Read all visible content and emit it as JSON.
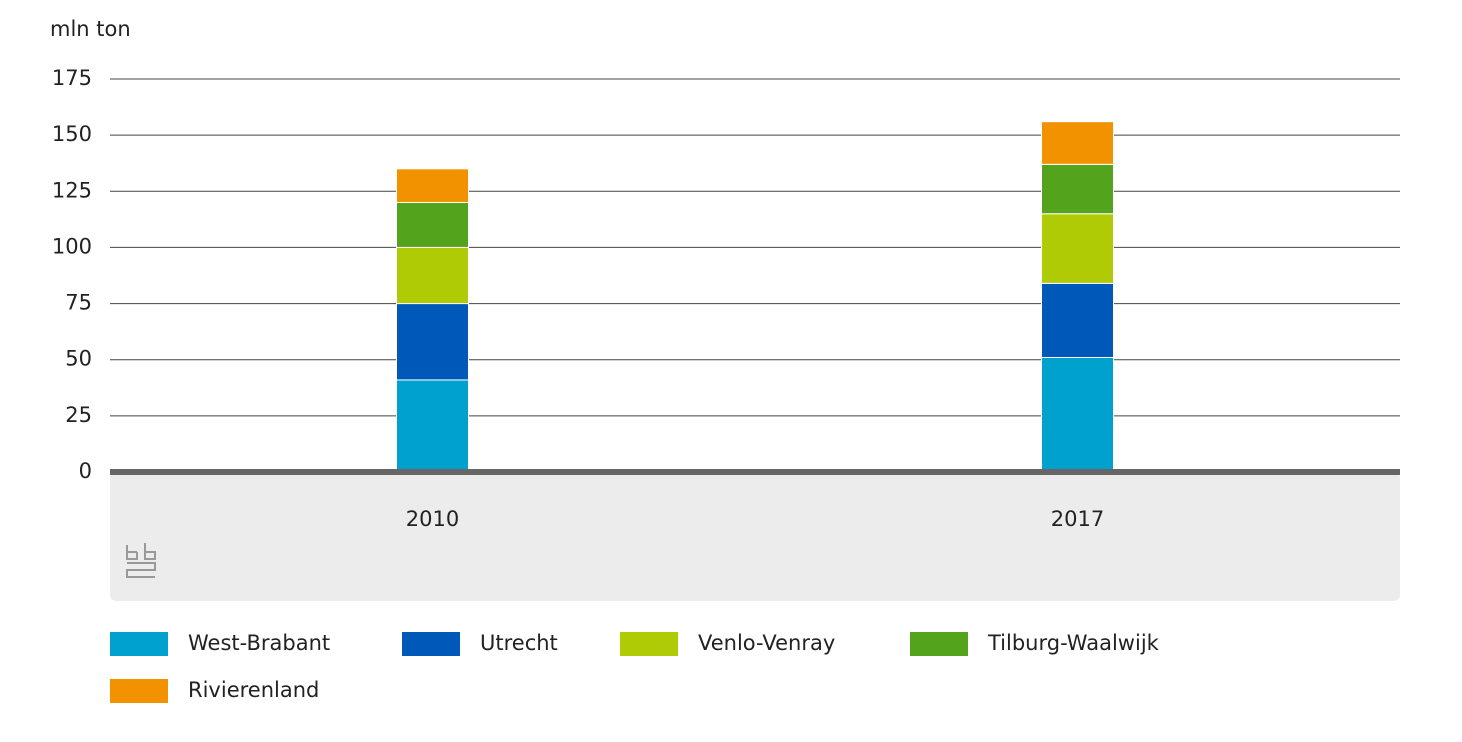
{
  "chart_data": {
    "type": "stacked_bar",
    "y_label": "mln ton",
    "categories": [
      "2010",
      "2017"
    ],
    "series": [
      {
        "name": "West-Brabant",
        "color": "#00a1cd",
        "values": [
          41,
          51
        ]
      },
      {
        "name": "Utrecht",
        "color": "#0058b8",
        "values": [
          34,
          33
        ]
      },
      {
        "name": "Venlo-Venray",
        "color": "#afcb05",
        "values": [
          25,
          31
        ]
      },
      {
        "name": "Tilburg-Waalwijk",
        "color": "#53a31d",
        "values": [
          20,
          22
        ]
      },
      {
        "name": "Rivierenland",
        "color": "#f39200",
        "values": [
          15,
          19
        ]
      }
    ],
    "ylim": [
      0,
      175
    ],
    "yticks": [
      0,
      25,
      50,
      75,
      100,
      125,
      150,
      175
    ],
    "grid": true
  }
}
